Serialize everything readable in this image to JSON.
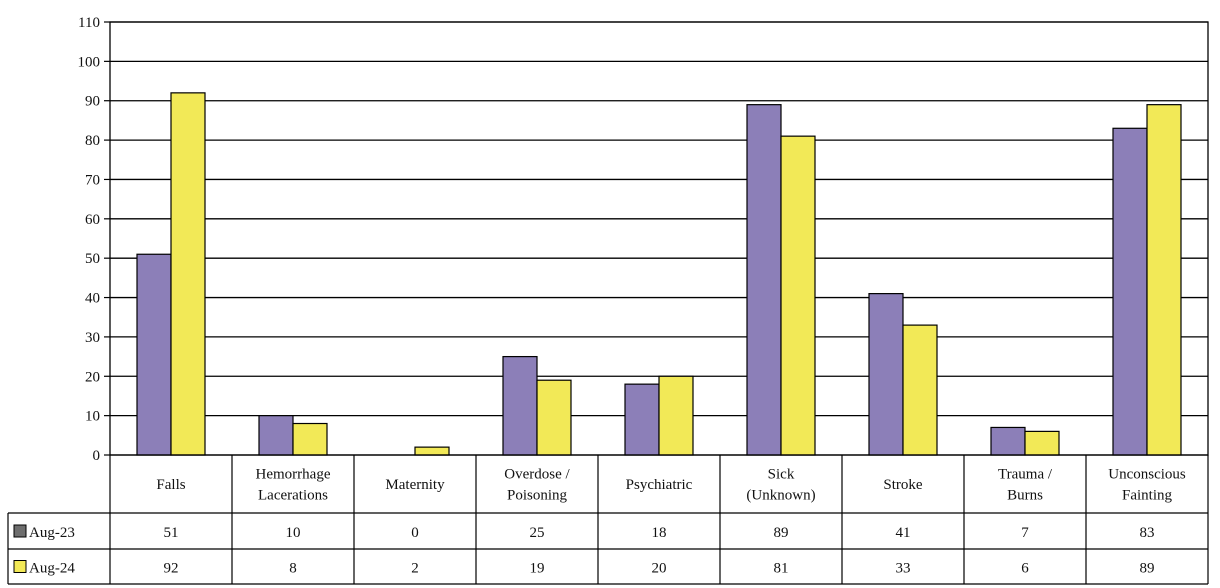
{
  "chart_data": {
    "type": "bar",
    "categories": [
      [
        "Falls"
      ],
      [
        "Hemorrhage",
        "Lacerations"
      ],
      [
        "Maternity"
      ],
      [
        "Overdose /",
        "Poisoning"
      ],
      [
        "Psychiatric"
      ],
      [
        "Sick",
        "(Unknown)"
      ],
      [
        "Stroke"
      ],
      [
        "Trauma /",
        "Burns"
      ],
      [
        "Unconscious",
        "Fainting"
      ]
    ],
    "series": [
      {
        "name": "Aug-23",
        "color": "#8c7fb8",
        "values": [
          51,
          10,
          0,
          25,
          18,
          89,
          41,
          7,
          83
        ]
      },
      {
        "name": "Aug-24",
        "color": "#f2e957",
        "values": [
          92,
          8,
          2,
          19,
          20,
          81,
          33,
          6,
          89
        ]
      }
    ],
    "y_ticks": [
      "0",
      "10",
      "20",
      "30",
      "40",
      "50",
      "60",
      "70",
      "80",
      "90",
      "100",
      "110"
    ],
    "ylim": [
      0,
      110
    ],
    "grid": true,
    "legend": "data-table-left",
    "title": "",
    "xlabel": "",
    "ylabel": ""
  }
}
